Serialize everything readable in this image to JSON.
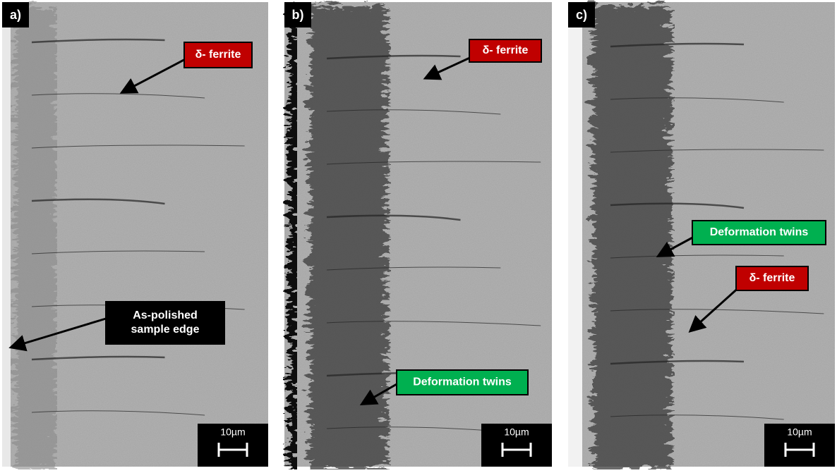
{
  "panels": [
    {
      "label": "a)",
      "scale": "10µm",
      "annotations": [
        {
          "text": "δ- ferrite",
          "kind": "red"
        },
        {
          "text": "As-polished\nsample edge",
          "kind": "black"
        }
      ]
    },
    {
      "label": "b)",
      "scale": "10µm",
      "annotations": [
        {
          "text": "δ- ferrite",
          "kind": "red"
        },
        {
          "text": "Deformation twins",
          "kind": "green"
        }
      ]
    },
    {
      "label": "c)",
      "scale": "10µm",
      "annotations": [
        {
          "text": "Deformation twins",
          "kind": "green"
        },
        {
          "text": "δ- ferrite",
          "kind": "red"
        }
      ]
    }
  ]
}
